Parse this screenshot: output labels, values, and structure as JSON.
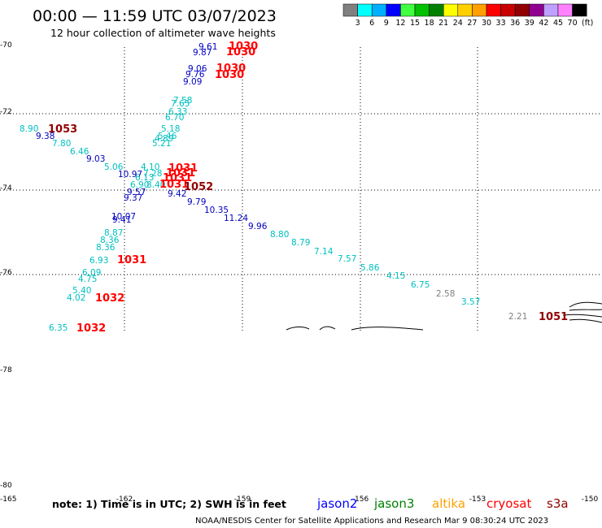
{
  "title": "00:00 — 11:59 UTC 03/07/2023",
  "subtitle": "12 hour collection of altimeter wave heights",
  "colorbar": {
    "unit": "(ft)",
    "colors": [
      "#808080",
      "#00ffff",
      "#00b0ff",
      "#0000ff",
      "#40ff40",
      "#00c000",
      "#008000",
      "#ffff00",
      "#ffd000",
      "#ffa000",
      "#ff0000",
      "#c80000",
      "#900000",
      "#900090",
      "#c0a0ff",
      "#ff80ff",
      "#000000"
    ],
    "labels": [
      "3",
      "6",
      "9",
      "12",
      "15",
      "18",
      "21",
      "24",
      "27",
      "30",
      "33",
      "36",
      "39",
      "42",
      "45",
      "70"
    ]
  },
  "axes": {
    "y_labels": [
      "-70",
      "-72",
      "-74",
      "-76",
      "-78",
      "-80"
    ],
    "x_labels": [
      "-165",
      "-162",
      "-159",
      "-156",
      "-153",
      "-150"
    ]
  },
  "footer": {
    "note": "note: 1) Time is in UTC; 2) SWH is in feet",
    "credit": "NOAA/NESDIS Center for Satellite Applications and Research   Mar  9 08:30:24 UTC 2023"
  },
  "legend": [
    {
      "name": "jason2",
      "color": "#0000ff"
    },
    {
      "name": "jason3",
      "color": "#008000"
    },
    {
      "name": "altika",
      "color": "#ffa000"
    },
    {
      "name": "cryosat",
      "color": "#ff0000"
    },
    {
      "name": "s3a",
      "color": "#900000"
    }
  ],
  "swh_labels": [
    {
      "v": "9.61",
      "c": "#0000c0"
    },
    {
      "v": "9.87",
      "c": "#0000c0"
    },
    {
      "v": "9.06",
      "c": "#0000c0"
    },
    {
      "v": "9.76",
      "c": "#0000c0"
    },
    {
      "v": "9.09",
      "c": "#0000c0"
    },
    {
      "v": "7.58",
      "c": "#00c0c0"
    },
    {
      "v": "7.65",
      "c": "#00c0c0"
    },
    {
      "v": "6.33",
      "c": "#00c0c0"
    },
    {
      "v": "6.70",
      "c": "#00c0c0"
    },
    {
      "v": "5.18",
      "c": "#00c0c0"
    },
    {
      "v": "5.46",
      "c": "#00c0c0"
    },
    {
      "v": "4.89",
      "c": "#00c0c0"
    },
    {
      "v": "5.21",
      "c": "#00c0c0"
    },
    {
      "v": "8.90",
      "c": "#00c0c0"
    },
    {
      "v": "9.38",
      "c": "#0000c0"
    },
    {
      "v": "7.80",
      "c": "#00c0c0"
    },
    {
      "v": "6.46",
      "c": "#00c0c0"
    },
    {
      "v": "9.03",
      "c": "#0000c0"
    },
    {
      "v": "5.06",
      "c": "#00c0c0"
    },
    {
      "v": "4.10",
      "c": "#00c0c0"
    },
    {
      "v": "10.97",
      "c": "#0000c0"
    },
    {
      "v": "7.28",
      "c": "#00c0c0"
    },
    {
      "v": "6.13",
      "c": "#00c0c0"
    },
    {
      "v": "6.90",
      "c": "#00c0c0"
    },
    {
      "v": "8.40",
      "c": "#00c0c0"
    },
    {
      "v": "9.57",
      "c": "#0000c0"
    },
    {
      "v": "9.42",
      "c": "#0000c0"
    },
    {
      "v": "9.37",
      "c": "#0000c0"
    },
    {
      "v": "9.79",
      "c": "#0000c0"
    },
    {
      "v": "10.35",
      "c": "#0000c0"
    },
    {
      "v": "11.24",
      "c": "#0000c0"
    },
    {
      "v": "10.07",
      "c": "#0000c0"
    },
    {
      "v": "9.41",
      "c": "#0000c0"
    },
    {
      "v": "9.96",
      "c": "#0000c0"
    },
    {
      "v": "8.80",
      "c": "#00c0c0"
    },
    {
      "v": "8.87",
      "c": "#00c0c0"
    },
    {
      "v": "8.79",
      "c": "#00c0c0"
    },
    {
      "v": "8.36",
      "c": "#00c0c0"
    },
    {
      "v": "8.36",
      "c": "#00c0c0"
    },
    {
      "v": "7.14",
      "c": "#00c0c0"
    },
    {
      "v": "7.57",
      "c": "#00c0c0"
    },
    {
      "v": "6.93",
      "c": "#00c0c0"
    },
    {
      "v": "5.86",
      "c": "#00c0c0"
    },
    {
      "v": "6.09",
      "c": "#00c0c0"
    },
    {
      "v": "4.75",
      "c": "#00c0c0"
    },
    {
      "v": "4.15",
      "c": "#00c0c0"
    },
    {
      "v": "6.75",
      "c": "#00c0c0"
    },
    {
      "v": "5.40",
      "c": "#00c0c0"
    },
    {
      "v": "4.02",
      "c": "#00c0c0"
    },
    {
      "v": "2.58",
      "c": "#808080"
    },
    {
      "v": "3.57",
      "c": "#00c0c0"
    },
    {
      "v": "2.21",
      "c": "#808080"
    },
    {
      "v": "6.35",
      "c": "#00c0c0"
    }
  ],
  "time_labels": [
    {
      "v": "1030",
      "c": "#ff0000"
    },
    {
      "v": "1030",
      "c": "#ff0000"
    },
    {
      "v": "1030",
      "c": "#ff0000"
    },
    {
      "v": "1030",
      "c": "#ff0000"
    },
    {
      "v": "1053",
      "c": "#900000"
    },
    {
      "v": "1031",
      "c": "#ff0000"
    },
    {
      "v": "1031",
      "c": "#ff0000"
    },
    {
      "v": "1031",
      "c": "#ff0000"
    },
    {
      "v": "1031",
      "c": "#ff0000"
    },
    {
      "v": "1052",
      "c": "#900000"
    },
    {
      "v": "1031",
      "c": "#ff0000"
    },
    {
      "v": "1032",
      "c": "#ff0000"
    },
    {
      "v": "1032",
      "c": "#ff0000"
    },
    {
      "v": "1051",
      "c": "#900000"
    }
  ]
}
